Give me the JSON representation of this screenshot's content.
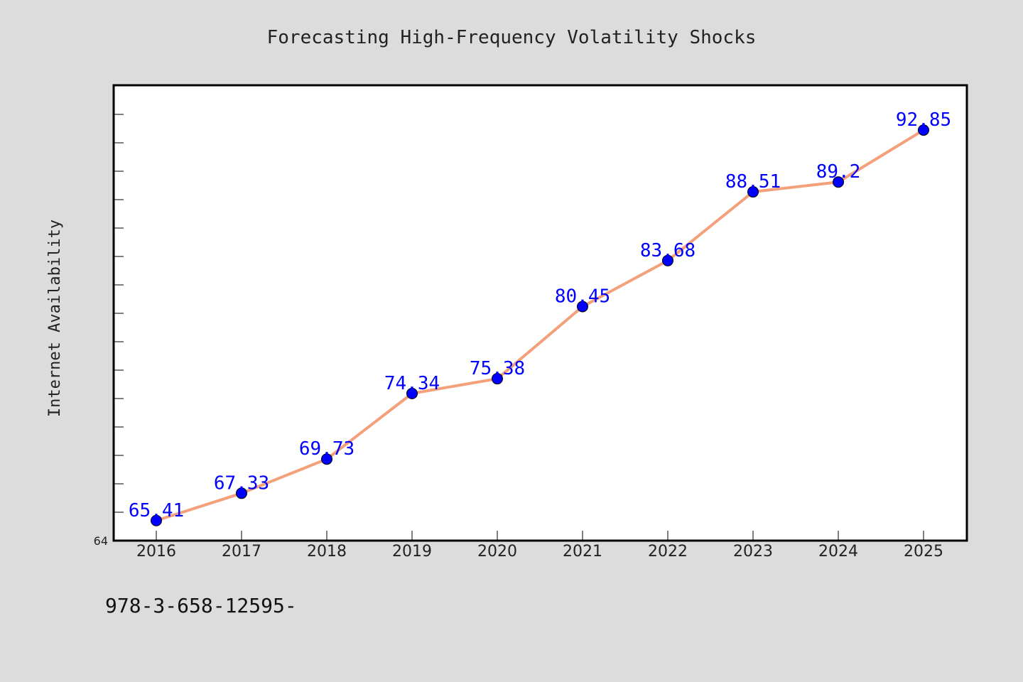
{
  "chart_data": {
    "type": "line",
    "title": "Forecasting High-Frequency Volatility Shocks",
    "xlabel": "",
    "ylabel": "Internet Availability",
    "categories": [
      "2016",
      "2017",
      "2018",
      "2019",
      "2020",
      "2021",
      "2022",
      "2023",
      "2024",
      "2025"
    ],
    "series": [
      {
        "values": [
          65.41,
          67.33,
          69.73,
          74.34,
          75.38,
          80.45,
          83.68,
          88.51,
          89.2,
          92.85
        ],
        "data_labels": [
          "65.41",
          "67.33",
          "69.73",
          "74.34",
          "75.38",
          "80.45",
          "83.68",
          "88.51",
          "89.2",
          "92.85"
        ],
        "line_color": "#f4a07a",
        "marker_color": "#0000ff"
      }
    ],
    "ylim": [
      64,
      96
    ],
    "y_tick_labels": [
      "64"
    ],
    "grid": false
  },
  "footer_text": "978-3-658-12595-",
  "colors": {
    "background": "#dcdcdc",
    "plot_background": "#ffffff",
    "axes": "#000000",
    "label_text": "#0000ff"
  }
}
